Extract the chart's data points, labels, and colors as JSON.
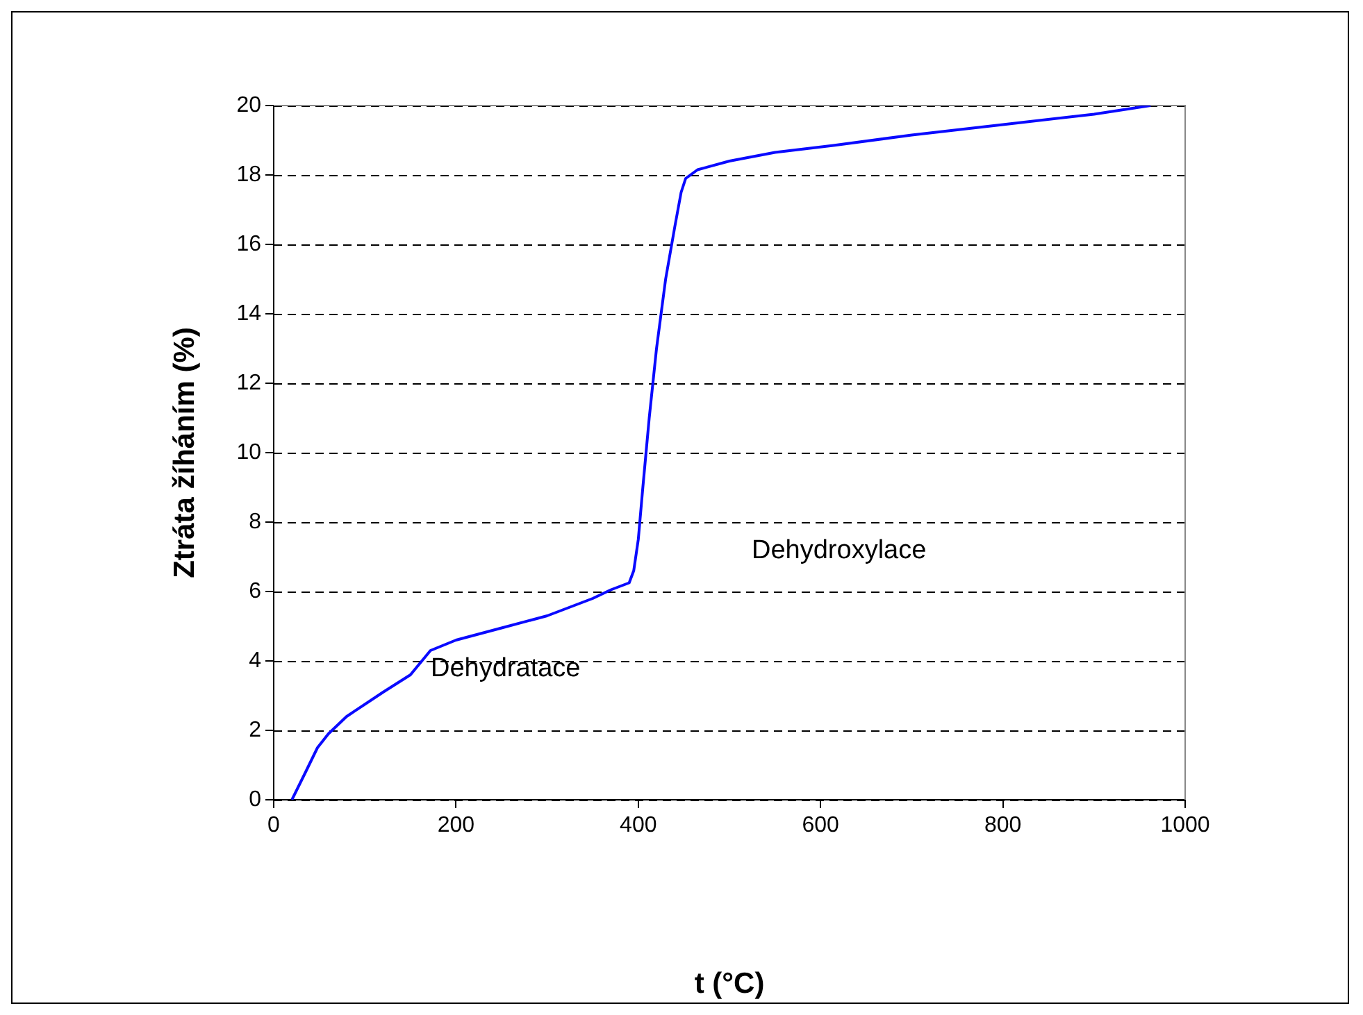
{
  "chart_data": {
    "type": "line",
    "xlabel": "t (°C)",
    "ylabel": "Ztráta žíháním (%)",
    "xlim": [
      0,
      1000
    ],
    "xticks": [
      0,
      200,
      400,
      600,
      800,
      1000
    ],
    "ylim": [
      0,
      20
    ],
    "yticks": [
      0,
      2,
      4,
      6,
      8,
      10,
      12,
      14,
      16,
      18,
      20
    ],
    "grid": "y",
    "legend": false,
    "marker": "none",
    "line_style": "solid",
    "annotations": [
      "Dehydratace",
      "Dehydroxylace"
    ],
    "series": [
      {
        "color": "#0a0aff",
        "x": [
          20,
          35,
          48,
          60,
          80,
          120,
          150,
          172,
          200,
          250,
          300,
          350,
          370,
          390,
          395,
          400,
          405,
          412,
          420,
          430,
          440,
          447,
          452,
          465,
          500,
          550,
          614,
          700,
          800,
          900,
          962
        ],
        "values": [
          0,
          0.8,
          1.5,
          1.9,
          2.4,
          3.1,
          3.6,
          4.3,
          4.6,
          4.95,
          5.3,
          5.8,
          6.05,
          6.25,
          6.6,
          7.5,
          9,
          11,
          13,
          15,
          16.5,
          17.5,
          17.9,
          18.15,
          18.4,
          18.65,
          18.85,
          19.15,
          19.45,
          19.75,
          20
        ]
      }
    ]
  }
}
